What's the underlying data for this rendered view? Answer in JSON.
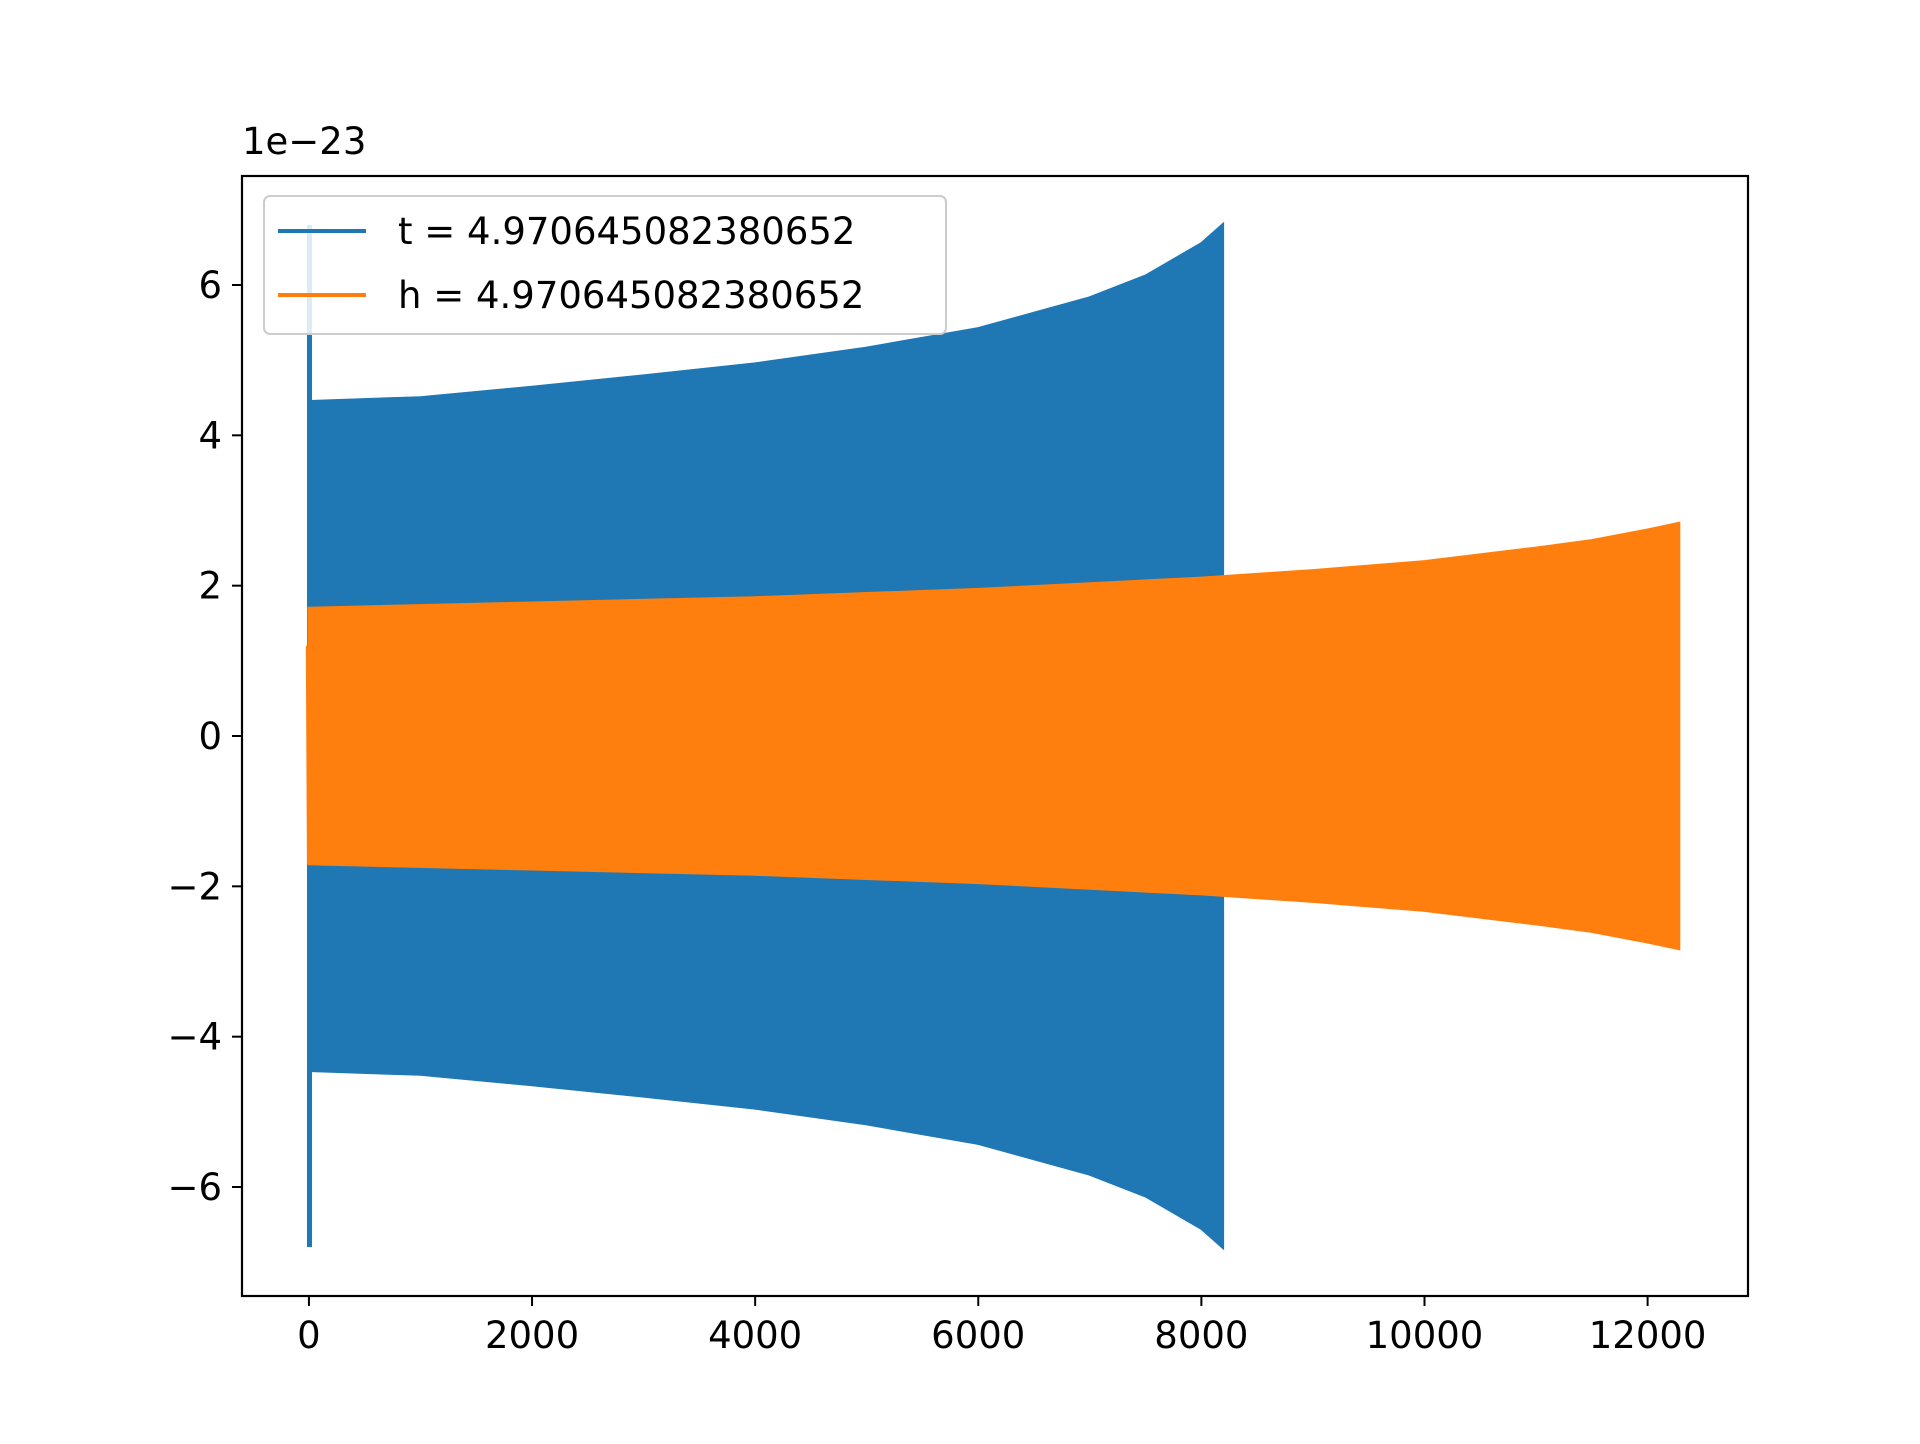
{
  "chart_data": {
    "type": "line",
    "title": "",
    "xlabel": "",
    "ylabel": "",
    "y_offset_label": "1e−23",
    "xlim": [
      -600,
      12900
    ],
    "ylim": [
      -7.45,
      7.45
    ],
    "x_ticks": [
      0,
      2000,
      4000,
      6000,
      8000,
      10000,
      12000
    ],
    "x_tick_labels": [
      "0",
      "2000",
      "4000",
      "6000",
      "8000",
      "10000",
      "12000"
    ],
    "y_ticks": [
      -6,
      -4,
      -2,
      0,
      2,
      4,
      6
    ],
    "y_tick_labels": [
      "−6",
      "−4",
      "−2",
      "0",
      "2",
      "4",
      "6"
    ],
    "grid": false,
    "legend_position": "upper-left",
    "series": [
      {
        "name": "t = 4.970645082380652",
        "color": "#1f77b4",
        "spike": {
          "x": 5,
          "y": 6.8
        },
        "start_x": 10,
        "envelope": [
          {
            "x": 10,
            "y": 4.45
          },
          {
            "x": 1000,
            "y": 4.5
          },
          {
            "x": 2000,
            "y": 4.64
          },
          {
            "x": 3000,
            "y": 4.79
          },
          {
            "x": 4000,
            "y": 4.95
          },
          {
            "x": 5000,
            "y": 5.16
          },
          {
            "x": 6000,
            "y": 5.42
          },
          {
            "x": 7000,
            "y": 5.83
          },
          {
            "x": 7500,
            "y": 6.12
          },
          {
            "x": 8000,
            "y": 6.55
          },
          {
            "x": 8190,
            "y": 6.8
          }
        ]
      },
      {
        "name": "h = 4.970645082380652",
        "color": "#ff7f0e",
        "start_segment": [
          {
            "x": -10,
            "y": 1.2
          },
          {
            "x": 0,
            "y": -1.7
          }
        ],
        "envelope": [
          {
            "x": 0,
            "y": 1.7
          },
          {
            "x": 2000,
            "y": 1.77
          },
          {
            "x": 4000,
            "y": 1.84
          },
          {
            "x": 6000,
            "y": 1.95
          },
          {
            "x": 8000,
            "y": 2.1
          },
          {
            "x": 9000,
            "y": 2.2
          },
          {
            "x": 10000,
            "y": 2.32
          },
          {
            "x": 11000,
            "y": 2.5
          },
          {
            "x": 11500,
            "y": 2.6
          },
          {
            "x": 12000,
            "y": 2.74
          },
          {
            "x": 12280,
            "y": 2.83
          }
        ]
      }
    ]
  }
}
